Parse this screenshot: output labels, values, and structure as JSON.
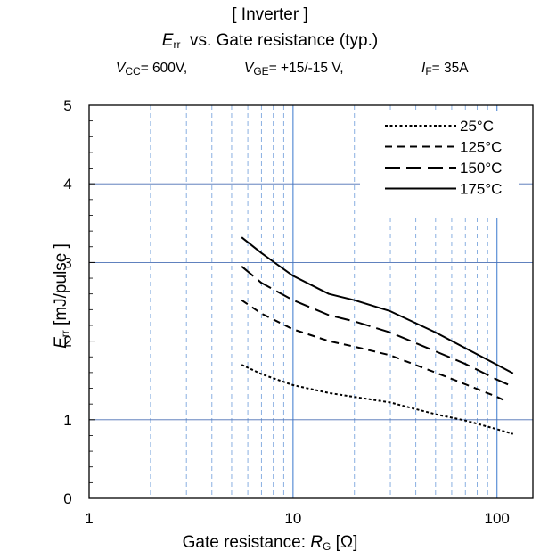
{
  "header": {
    "title": "[ Inverter ]",
    "subtitle_var": "E",
    "subtitle_sub": "rr",
    "subtitle_rest": "vs.  Gate resistance  (typ.)"
  },
  "conditions": {
    "vcc_var": "V",
    "vcc_sub": "CC",
    "vcc_value": "= 600V,",
    "vge_var": "V",
    "vge_sub": "GE",
    "vge_value": "=  +15/-15 V,",
    "if_var": "I",
    "if_sub": "F",
    "if_value": "=  35A"
  },
  "axes": {
    "ylabel_var": "E",
    "ylabel_sub": "rr",
    "ylabel_rest": "[mJ/pulse ]",
    "xlabel_text": "Gate resistance: ",
    "xlabel_var": "R",
    "xlabel_sub": "G",
    "xlabel_unit": "[Ω]"
  },
  "chart_data": {
    "type": "line",
    "title": "[ Inverter ] Err vs. Gate resistance (typ.)",
    "xlabel": "Gate resistance: RG [Ω]",
    "ylabel": "Err [mJ/pulse ]",
    "xscale": "log",
    "xlim": [
      1,
      150
    ],
    "ylim": [
      0,
      5
    ],
    "xticks": [
      1,
      10,
      100
    ],
    "xtick_labels": [
      "1",
      "10",
      "100"
    ],
    "yticks": [
      0,
      1,
      2,
      3,
      4,
      5
    ],
    "ytick_labels": [
      "0",
      "1",
      "2",
      "3",
      "4",
      "5"
    ],
    "grid": true,
    "legend_position": "top-right",
    "series": [
      {
        "name": "25°C",
        "dash": "dotted",
        "x": [
          5.6,
          7,
          10,
          15,
          20,
          30,
          50,
          70,
          100,
          120
        ],
        "y": [
          1.7,
          1.58,
          1.44,
          1.34,
          1.29,
          1.22,
          1.07,
          0.99,
          0.88,
          0.82
        ]
      },
      {
        "name": "125°C",
        "dash": "short-dash",
        "x": [
          5.6,
          7,
          10,
          15,
          20,
          30,
          50,
          70,
          100,
          110
        ],
        "y": [
          2.52,
          2.35,
          2.15,
          2.0,
          1.93,
          1.82,
          1.6,
          1.45,
          1.29,
          1.24
        ]
      },
      {
        "name": "150°C",
        "dash": "long-dash",
        "x": [
          5.6,
          7,
          10,
          15,
          20,
          30,
          50,
          70,
          100,
          120
        ],
        "y": [
          2.95,
          2.74,
          2.52,
          2.33,
          2.25,
          2.11,
          1.87,
          1.71,
          1.51,
          1.42
        ]
      },
      {
        "name": "175°C",
        "dash": "solid",
        "x": [
          5.6,
          7,
          8,
          10,
          15,
          20,
          30,
          50,
          70,
          100,
          120
        ],
        "y": [
          3.32,
          3.12,
          3.01,
          2.83,
          2.6,
          2.52,
          2.38,
          2.11,
          1.91,
          1.7,
          1.59
        ]
      }
    ]
  }
}
